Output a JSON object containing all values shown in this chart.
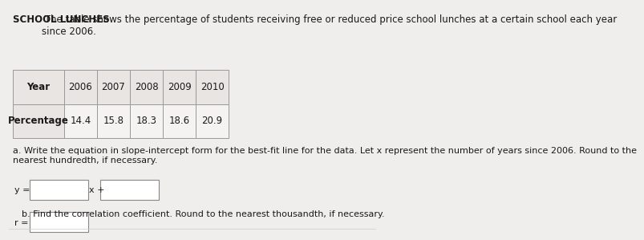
{
  "title_bold": "SCHOOL LUNCHES",
  "title_normal": " The table shows the percentage of students receiving free or reduced price school lunches at a certain school each year\nsince 2006.",
  "table_headers": [
    "Year",
    "2006",
    "2007",
    "2008",
    "2009",
    "2010"
  ],
  "table_row": [
    "Percentage",
    "14.4",
    "15.8",
    "18.3",
    "18.6",
    "20.9"
  ],
  "question_a": "a. Write the equation in slope-intercept form for the best-fit line for the data. Let x represent the number of years since 2006. Round to the\nnearest hundredth, if necessary.",
  "question_b": "b. Find the correlation coefficient. Round to the nearest thousandth, if necessary.",
  "label_y": "y =",
  "label_x": "x +",
  "label_r": "r =",
  "bg_color": "#f0eeec",
  "table_bg": "#e8e5e2",
  "cell_bg": "#f5f3f1",
  "border_color": "#999999",
  "text_color": "#1a1a1a",
  "font_size_title": 8.5,
  "font_size_table": 8.5,
  "font_size_question": 8.0,
  "input_box_color": "#ffffff"
}
